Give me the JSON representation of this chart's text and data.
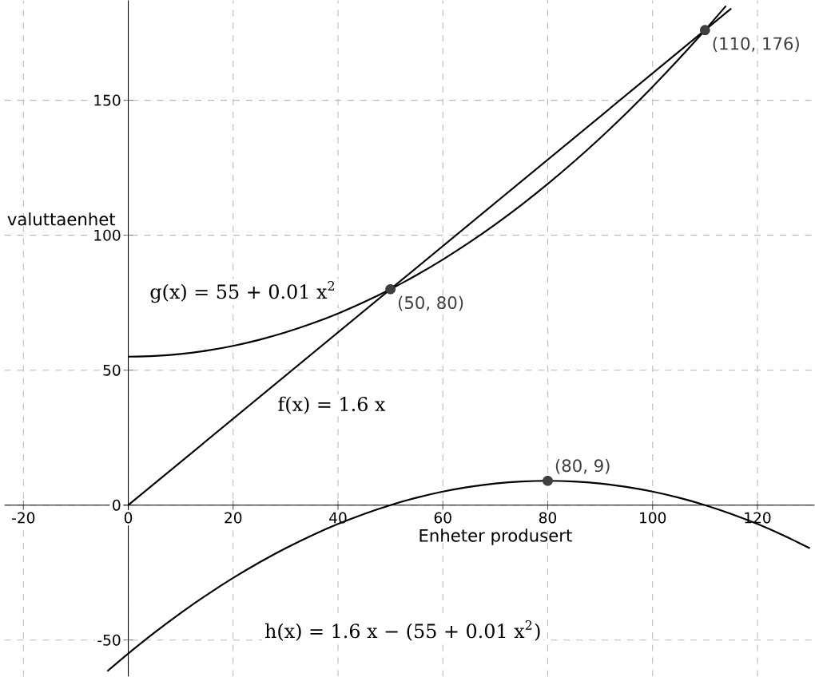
{
  "chart_data": {
    "type": "line",
    "xlabel": "Enheter produsert",
    "ylabel": "valuttaenhet",
    "xlim": [
      -23.6,
      130.9
    ],
    "ylim": [
      -63.5,
      187
    ],
    "xticks": [
      -20,
      0,
      20,
      40,
      60,
      80,
      100,
      120
    ],
    "yticks": [
      -50,
      0,
      50,
      100,
      150
    ],
    "grid": true,
    "line_style": "solid",
    "series": [
      {
        "name": "g(x) = 55 + 0.01 x$^{2}$",
        "color": "#000000",
        "x": [
          0,
          5,
          10,
          15,
          20,
          25,
          30,
          35,
          40,
          45,
          50,
          55,
          60,
          65,
          70,
          75,
          80,
          85,
          90,
          95,
          100,
          105,
          110,
          114
        ],
        "values": [
          55,
          55.25,
          56,
          57.25,
          59,
          61.25,
          64,
          67.25,
          71,
          75.25,
          80,
          85.25,
          91,
          97.25,
          104,
          111.25,
          119,
          127.25,
          136,
          145.25,
          155,
          165.25,
          176,
          184.96
        ]
      },
      {
        "name": "f(x) = 1.6 x",
        "color": "#000000",
        "x": [
          0,
          115
        ],
        "values": [
          0,
          184
        ]
      },
      {
        "name": "h(x) = 1.6 x − (55 + 0.01 x$^{2}$)",
        "color": "#000000",
        "x": [
          -4,
          0,
          5,
          10,
          15,
          20,
          25,
          30,
          35,
          40,
          45,
          50,
          55,
          60,
          65,
          70,
          75,
          80,
          85,
          90,
          95,
          100,
          105,
          110,
          115,
          120,
          125,
          130
        ],
        "values": [
          -61.56,
          -55,
          -47.25,
          -40,
          -33.25,
          -27,
          -21.25,
          -16,
          -11.25,
          -7,
          -3.25,
          0,
          2.75,
          5,
          6.75,
          8,
          8.75,
          9,
          8.75,
          8,
          6.75,
          5,
          2.75,
          0,
          -3.25,
          -7,
          -11.25,
          -16
        ]
      },
      {
        "type": "scatter",
        "color": "#404040",
        "x": [
          50,
          110,
          80
        ],
        "values": [
          80,
          176,
          9
        ]
      }
    ],
    "annotations": [
      {
        "text": "(50, 80)",
        "x": 50,
        "y": 80
      },
      {
        "text": "(110, 176)",
        "x": 110,
        "y": 176
      },
      {
        "text": "(80, 9)",
        "x": 80,
        "y": 9
      }
    ]
  }
}
